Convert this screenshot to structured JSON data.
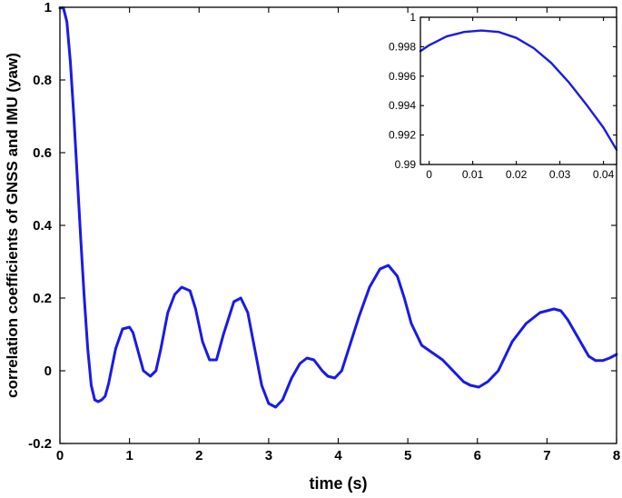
{
  "chart_data": [
    {
      "type": "line",
      "title": "",
      "xlabel": "time (s)",
      "ylabel": "correlation coefficients of GNSS and IMU (yaw)",
      "xlim": [
        0,
        8
      ],
      "ylim": [
        -0.2,
        1
      ],
      "xticks": [
        0,
        1,
        2,
        3,
        4,
        5,
        6,
        7,
        8
      ],
      "xtick_labels": [
        "0",
        "1",
        "2",
        "3",
        "4",
        "5",
        "6",
        "7",
        "8"
      ],
      "yticks": [
        -0.2,
        0,
        0.2,
        0.4,
        0.6,
        0.8,
        1
      ],
      "ytick_labels": [
        "-0.2",
        "0",
        "0.2",
        "0.4",
        "0.6",
        "0.8",
        "1"
      ],
      "grid": false,
      "color": "#1a1ae6",
      "series": [
        {
          "x": [
            0,
            0.05,
            0.1,
            0.15,
            0.2,
            0.25,
            0.3,
            0.35,
            0.4,
            0.45,
            0.5,
            0.55,
            0.6,
            0.65,
            0.7,
            0.8,
            0.9,
            1.0,
            1.05,
            1.1,
            1.2,
            1.3,
            1.38,
            1.45,
            1.55,
            1.65,
            1.75,
            1.87,
            1.95,
            2.05,
            2.15,
            2.25,
            2.35,
            2.5,
            2.6,
            2.7,
            2.8,
            2.9,
            3.0,
            3.1,
            3.2,
            3.33,
            3.45,
            3.55,
            3.65,
            3.77,
            3.85,
            3.95,
            4.05,
            4.15,
            4.3,
            4.45,
            4.6,
            4.72,
            4.85,
            4.95,
            5.05,
            5.2,
            5.35,
            5.5,
            5.65,
            5.8,
            5.9,
            6.02,
            6.15,
            6.3,
            6.5,
            6.7,
            6.9,
            7.1,
            7.2,
            7.3,
            7.45,
            7.6,
            7.7,
            7.8,
            7.9,
            8.0
          ],
          "y": [
            0.998,
            0.998,
            0.96,
            0.85,
            0.7,
            0.53,
            0.36,
            0.2,
            0.06,
            -0.04,
            -0.08,
            -0.085,
            -0.08,
            -0.07,
            -0.035,
            0.06,
            0.115,
            0.12,
            0.105,
            0.07,
            0.0,
            -0.015,
            0.0,
            0.06,
            0.16,
            0.21,
            0.23,
            0.22,
            0.17,
            0.08,
            0.03,
            0.03,
            0.1,
            0.19,
            0.2,
            0.16,
            0.06,
            -0.04,
            -0.09,
            -0.1,
            -0.08,
            -0.02,
            0.02,
            0.035,
            0.03,
            0.0,
            -0.015,
            -0.02,
            0.0,
            0.06,
            0.15,
            0.23,
            0.28,
            0.29,
            0.26,
            0.2,
            0.13,
            0.07,
            0.05,
            0.03,
            0.0,
            -0.03,
            -0.04,
            -0.045,
            -0.03,
            0.0,
            0.08,
            0.13,
            0.16,
            0.17,
            0.165,
            0.14,
            0.09,
            0.04,
            0.028,
            0.028,
            0.035,
            0.045
          ]
        }
      ]
    },
    {
      "type": "line",
      "title": "",
      "xlabel": "",
      "ylabel": "",
      "xlim": [
        -0.002,
        0.043
      ],
      "ylim": [
        0.99,
        1.0
      ],
      "xticks": [
        0,
        0.01,
        0.02,
        0.03,
        0.04
      ],
      "xtick_labels": [
        "0",
        "0.01",
        "0.02",
        "0.03",
        "0.04"
      ],
      "yticks": [
        0.99,
        0.992,
        0.994,
        0.996,
        0.998,
        1.0
      ],
      "ytick_labels": [
        "0.99",
        "0.992",
        "0.994",
        "0.996",
        "0.998",
        "1"
      ],
      "grid": false,
      "color": "#1a1ae6",
      "series": [
        {
          "x": [
            -0.002,
            0.0,
            0.004,
            0.008,
            0.012,
            0.016,
            0.02,
            0.024,
            0.028,
            0.032,
            0.036,
            0.04,
            0.043
          ],
          "y": [
            0.9977,
            0.9981,
            0.9987,
            0.999,
            0.9991,
            0.999,
            0.9986,
            0.9979,
            0.9969,
            0.9956,
            0.9941,
            0.9925,
            0.991
          ]
        }
      ]
    }
  ]
}
